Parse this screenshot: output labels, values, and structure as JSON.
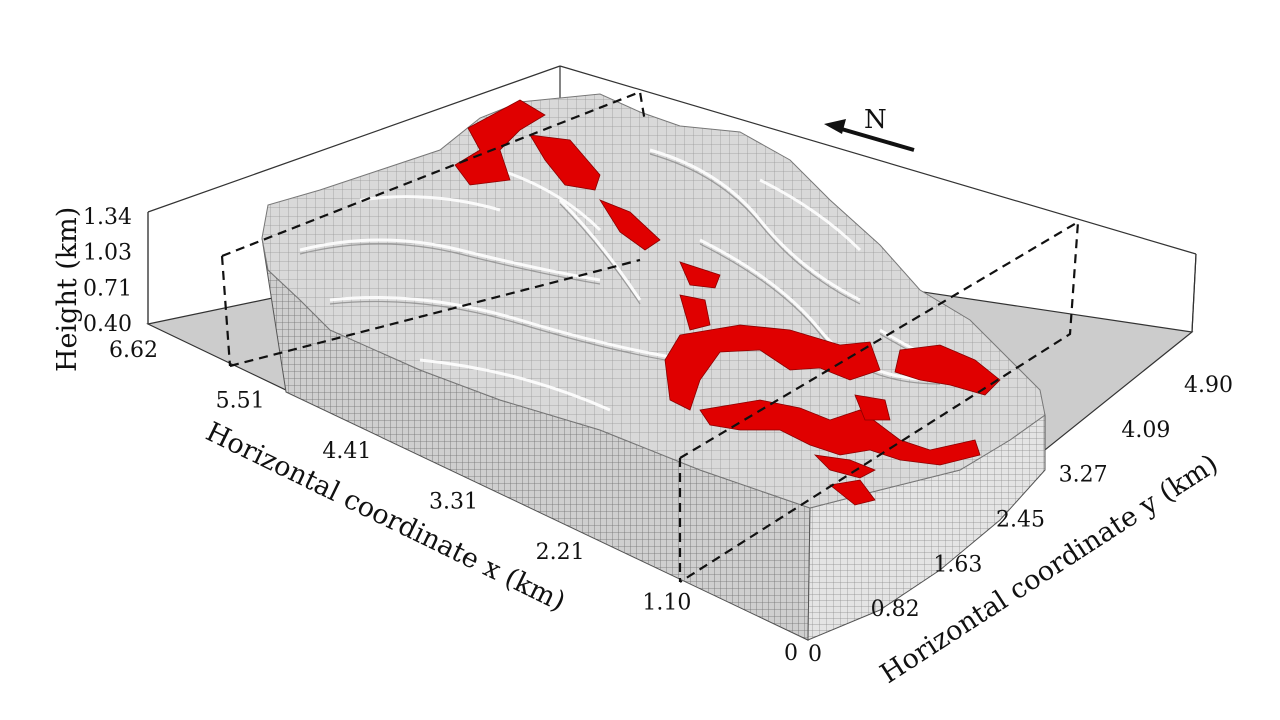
{
  "chart_data": {
    "type": "3d-voxel",
    "title": "",
    "north_label": "N",
    "x_axis": {
      "label": "Horizontal coordinate x (km)",
      "ticks": [
        "0",
        "1.10",
        "2.21",
        "3.31",
        "4.41",
        "5.51",
        "6.62"
      ],
      "range": [
        0,
        6.62
      ]
    },
    "y_axis": {
      "label": "Horizontal coordinate y (km)",
      "ticks": [
        "0",
        "0.82",
        "1.63",
        "2.45",
        "3.27",
        "4.09",
        "4.90"
      ],
      "range": [
        0,
        4.9
      ]
    },
    "z_axis": {
      "label": "Height (km)",
      "ticks": [
        "0.40",
        "0.71",
        "1.03",
        "1.34"
      ],
      "range": [
        0.4,
        1.34
      ]
    },
    "section_planes": [
      {
        "axis": "x",
        "value": 1.1
      },
      {
        "axis": "x",
        "value": 5.51
      }
    ],
    "series": [
      {
        "name": "terrain voxels",
        "color": "#d6d6d6"
      },
      {
        "name": "highlighted voxels",
        "color": "#e00000"
      }
    ]
  }
}
